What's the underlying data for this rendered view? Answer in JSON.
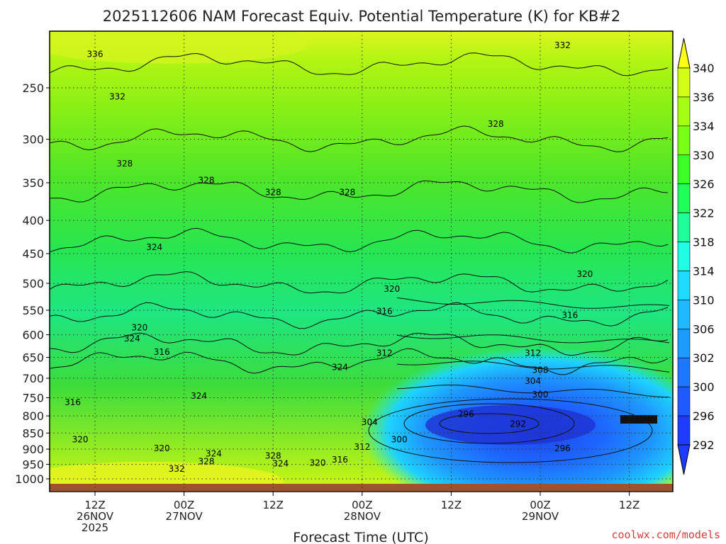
{
  "chart_data": {
    "type": "heatmap",
    "title": "2025112606 NAM Forecast Equiv. Potential Temperature (K) for KB#2",
    "xlabel": "Forecast Time (UTC)",
    "ylabel": "",
    "y_scale": "log",
    "y_inverted": true,
    "y_ticks": [
      250,
      300,
      350,
      400,
      450,
      500,
      550,
      600,
      650,
      700,
      750,
      800,
      850,
      900,
      950,
      1000
    ],
    "y_tick_labels": [
      "250",
      "300",
      "350",
      "400",
      "450",
      "500",
      "550",
      "600",
      "650",
      "700",
      "750",
      "800",
      "850",
      "900",
      "950",
      "1000"
    ],
    "x_ticks": [
      {
        "time": "2025-11-26T12:00Z",
        "lines": [
          "12Z",
          "26NOV",
          "2025"
        ]
      },
      {
        "time": "2025-11-27T00:00Z",
        "lines": [
          "00Z",
          "27NOV"
        ]
      },
      {
        "time": "2025-11-27T12:00Z",
        "lines": [
          "12Z"
        ]
      },
      {
        "time": "2025-11-28T00:00Z",
        "lines": [
          "00Z",
          "28NOV"
        ]
      },
      {
        "time": "2025-11-28T12:00Z",
        "lines": [
          "12Z"
        ]
      },
      {
        "time": "2025-11-29T00:00Z",
        "lines": [
          "00Z",
          "29NOV"
        ]
      },
      {
        "time": "2025-11-29T12:00Z",
        "lines": [
          "12Z"
        ]
      }
    ],
    "grid": true,
    "colorbar": {
      "levels": [
        292,
        296,
        300,
        302,
        306,
        310,
        314,
        318,
        322,
        326,
        330,
        334,
        336,
        340
      ],
      "colors": [
        "#1e3cff",
        "#1e5aff",
        "#1e78ff",
        "#1e9bff",
        "#1eb9ff",
        "#1edcff",
        "#1effe6",
        "#1eff9b",
        "#1eff5a",
        "#3cff28",
        "#78ff14",
        "#a5ff14",
        "#d2ff14",
        "#ffff14"
      ],
      "extend": "both",
      "position": "right"
    },
    "contour_labels": [
      {
        "value": "336",
        "time": "2025-11-26T12:00Z",
        "p": 222
      },
      {
        "value": "332",
        "time": "2025-11-26T15:00Z",
        "p": 258
      },
      {
        "value": "332",
        "time": "2025-11-29T03:00Z",
        "p": 215
      },
      {
        "value": "328",
        "time": "2025-11-26T16:00Z",
        "p": 327
      },
      {
        "value": "328",
        "time": "2025-11-27T03:00Z",
        "p": 347
      },
      {
        "value": "328",
        "time": "2025-11-27T12:00Z",
        "p": 362
      },
      {
        "value": "328",
        "time": "2025-11-27T22:00Z",
        "p": 362
      },
      {
        "value": "328",
        "time": "2025-11-28T18:00Z",
        "p": 284
      },
      {
        "value": "324",
        "time": "2025-11-26T20:00Z",
        "p": 440
      },
      {
        "value": "320",
        "time": "2025-11-28T04:00Z",
        "p": 510
      },
      {
        "value": "320",
        "time": "2025-11-29T06:00Z",
        "p": 484
      },
      {
        "value": "316",
        "time": "2025-11-28T03:00Z",
        "p": 552
      },
      {
        "value": "316",
        "time": "2025-11-29T04:00Z",
        "p": 560
      },
      {
        "value": "320",
        "time": "2025-11-26T18:00Z",
        "p": 585
      },
      {
        "value": "324",
        "time": "2025-11-26T17:00Z",
        "p": 608
      },
      {
        "value": "316",
        "time": "2025-11-26T21:00Z",
        "p": 638
      },
      {
        "value": "312",
        "time": "2025-11-28T03:00Z",
        "p": 640
      },
      {
        "value": "312",
        "time": "2025-11-28T23:00Z",
        "p": 640
      },
      {
        "value": "308",
        "time": "2025-11-29T00:00Z",
        "p": 680
      },
      {
        "value": "304",
        "time": "2025-11-28T23:00Z",
        "p": 707
      },
      {
        "value": "324",
        "time": "2025-11-27T21:00Z",
        "p": 673
      },
      {
        "value": "324",
        "time": "2025-11-27T02:00Z",
        "p": 745
      },
      {
        "value": "300",
        "time": "2025-11-29T00:00Z",
        "p": 742
      },
      {
        "value": "316",
        "time": "2025-11-26T09:00Z",
        "p": 762
      },
      {
        "value": "296",
        "time": "2025-11-28T14:00Z",
        "p": 795
      },
      {
        "value": "292",
        "time": "2025-11-28T21:00Z",
        "p": 823
      },
      {
        "value": "304",
        "time": "2025-11-28T01:00Z",
        "p": 818
      },
      {
        "value": "300",
        "time": "2025-11-28T05:00Z",
        "p": 870
      },
      {
        "value": "320",
        "time": "2025-11-26T10:00Z",
        "p": 870
      },
      {
        "value": "312",
        "time": "2025-11-28T00:00Z",
        "p": 893
      },
      {
        "value": "296",
        "time": "2025-11-29T03:00Z",
        "p": 898
      },
      {
        "value": "320",
        "time": "2025-11-26T21:00Z",
        "p": 898
      },
      {
        "value": "324",
        "time": "2025-11-27T04:00Z",
        "p": 915
      },
      {
        "value": "328",
        "time": "2025-11-27T12:00Z",
        "p": 922
      },
      {
        "value": "328",
        "time": "2025-11-27T03:00Z",
        "p": 940
      },
      {
        "value": "324",
        "time": "2025-11-27T13:00Z",
        "p": 948
      },
      {
        "value": "320",
        "time": "2025-11-27T18:00Z",
        "p": 945
      },
      {
        "value": "316",
        "time": "2025-11-27T21:00Z",
        "p": 935
      },
      {
        "value": "332",
        "time": "2025-11-26T23:00Z",
        "p": 965
      }
    ]
  },
  "credit": "coolwx.com/models"
}
